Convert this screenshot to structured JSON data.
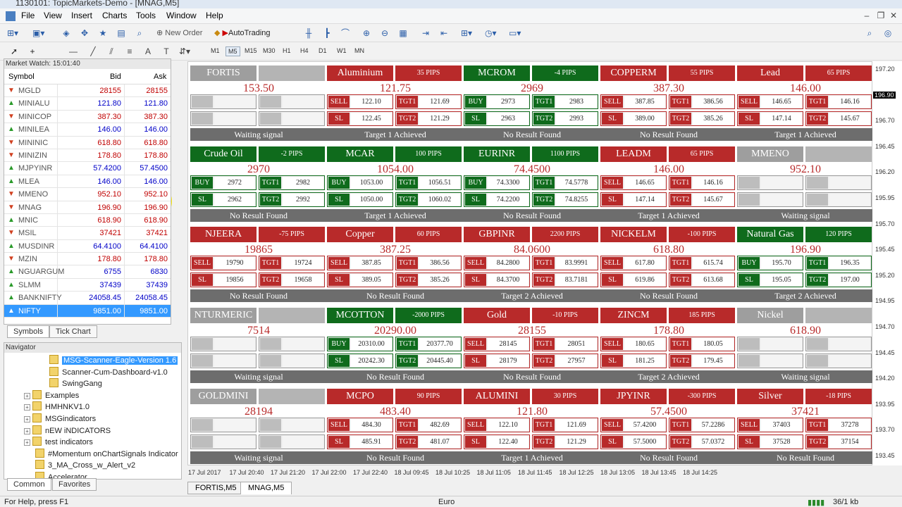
{
  "window": {
    "title": "1130101: TopicMarkets-Demo - [MNAG,M5]"
  },
  "menu": [
    "File",
    "View",
    "Insert",
    "Charts",
    "Tools",
    "Window",
    "Help"
  ],
  "toolbar": {
    "new_order": "New Order",
    "autotrading": "AutoTrading",
    "timeframes": [
      "M1",
      "M5",
      "M15",
      "M30",
      "H1",
      "H4",
      "D1",
      "W1",
      "MN"
    ],
    "active_timeframe": "M5"
  },
  "market_watch": {
    "title": "Market Watch: 15:01:40",
    "headers": {
      "symbol": "Symbol",
      "bid": "Bid",
      "ask": "Ask"
    },
    "rows": [
      {
        "symbol": "MGLD",
        "bid": "28155",
        "ask": "28155",
        "dir": "down",
        "color": "#c00000"
      },
      {
        "symbol": "MINIALU",
        "bid": "121.80",
        "ask": "121.80",
        "dir": "up",
        "color": "#0000c8"
      },
      {
        "symbol": "MINICOP",
        "bid": "387.30",
        "ask": "387.30",
        "dir": "down",
        "color": "#c00000"
      },
      {
        "symbol": "MINILEA",
        "bid": "146.00",
        "ask": "146.00",
        "dir": "up",
        "color": "#0000c8"
      },
      {
        "symbol": "MININIC",
        "bid": "618.80",
        "ask": "618.80",
        "dir": "down",
        "color": "#c00000"
      },
      {
        "symbol": "MINIZIN",
        "bid": "178.80",
        "ask": "178.80",
        "dir": "down",
        "color": "#c00000"
      },
      {
        "symbol": "MJPYINR",
        "bid": "57.4200",
        "ask": "57.4500",
        "dir": "up",
        "color": "#0000c8"
      },
      {
        "symbol": "MLEA",
        "bid": "146.00",
        "ask": "146.00",
        "dir": "up",
        "color": "#0000c8"
      },
      {
        "symbol": "MMENO",
        "bid": "952.10",
        "ask": "952.10",
        "dir": "down",
        "color": "#c00000"
      },
      {
        "symbol": "MNAG",
        "bid": "196.90",
        "ask": "196.90",
        "dir": "down",
        "color": "#c00000"
      },
      {
        "symbol": "MNIC",
        "bid": "618.90",
        "ask": "618.90",
        "dir": "up",
        "color": "#c00000"
      },
      {
        "symbol": "MSIL",
        "bid": "37421",
        "ask": "37421",
        "dir": "down",
        "color": "#c00000"
      },
      {
        "symbol": "MUSDINR",
        "bid": "64.4100",
        "ask": "64.4100",
        "dir": "up",
        "color": "#0000c8"
      },
      {
        "symbol": "MZIN",
        "bid": "178.80",
        "ask": "178.80",
        "dir": "down",
        "color": "#c00000"
      },
      {
        "symbol": "NGUARGUM",
        "bid": "6755",
        "ask": "6830",
        "dir": "up",
        "color": "#0000c8"
      },
      {
        "symbol": "SLMM",
        "bid": "37439",
        "ask": "37439",
        "dir": "up",
        "color": "#0000c8"
      },
      {
        "symbol": "BANKNIFTY",
        "bid": "24058.45",
        "ask": "24058.45",
        "dir": "up",
        "color": "#0000c8"
      },
      {
        "symbol": "NIFTY",
        "bid": "9851.00",
        "ask": "9851.00",
        "dir": "up",
        "color": "#0000c8",
        "selected": true
      }
    ],
    "tabs": [
      "Symbols",
      "Tick Chart"
    ]
  },
  "navigator": {
    "title": "Navigator",
    "items": [
      {
        "label": "MSG-Scanner-Eagle-Version 1.6",
        "highlight": true
      },
      {
        "label": "Scanner-Cum-Dashboard-v1.0"
      },
      {
        "label": "SwingGang"
      },
      {
        "label": "Examples",
        "folder": true
      },
      {
        "label": "HMHNKV1.0",
        "folder": true
      },
      {
        "label": "MSGindicators",
        "folder": true
      },
      {
        "label": "nEW iNDICATORS",
        "folder": true
      },
      {
        "label": "test indicators",
        "folder": true
      },
      {
        "label": "#Momentum onChartSignals Indicator"
      },
      {
        "label": "3_MA_Cross_w_Alert_v2"
      },
      {
        "label": "Accelerator"
      }
    ],
    "tabs": [
      "Common",
      "Favorites"
    ]
  },
  "dashboard": [
    [
      {
        "name": "FORTIS",
        "pips": "",
        "price": "153.50",
        "color": "#9e9e9e",
        "pcolor": "#b4b4b4",
        "empty": true,
        "status": "Waiting signal"
      },
      {
        "name": "Aluminium",
        "pips": "35 PIPS",
        "price": "121.75",
        "color": "#b82a2a",
        "pcolor": "#b82a2a",
        "dir": "SELL",
        "entry": "122.10",
        "sl": "122.45",
        "tgt1": "121.69",
        "tgt2": "121.29",
        "status": "Target 1 Achieved"
      },
      {
        "name": "MCROM",
        "pips": "-4 PIPS",
        "price": "2969",
        "color": "#0f6b1c",
        "pcolor": "#0f6b1c",
        "dir": "BUY",
        "entry": "2973",
        "sl": "2963",
        "tgt1": "2983",
        "tgt2": "2993",
        "status": "No Result Found"
      },
      {
        "name": "COPPERM",
        "pips": "55 PIPS",
        "price": "387.30",
        "color": "#b82a2a",
        "pcolor": "#b82a2a",
        "dir": "SELL",
        "entry": "387.85",
        "sl": "389.00",
        "tgt1": "386.56",
        "tgt2": "385.26",
        "status": "No Result Found"
      },
      {
        "name": "Lead",
        "pips": "65 PIPS",
        "price": "146.00",
        "color": "#b82a2a",
        "pcolor": "#b82a2a",
        "dir": "SELL",
        "entry": "146.65",
        "sl": "147.14",
        "tgt1": "146.16",
        "tgt2": "145.67",
        "status": "Target 1 Achieved"
      }
    ],
    [
      {
        "name": "Crude Oil",
        "pips": "-2 PIPS",
        "price": "2970",
        "color": "#0f6b1c",
        "pcolor": "#0f6b1c",
        "dir": "BUY",
        "entry": "2972",
        "sl": "2962",
        "tgt1": "2982",
        "tgt2": "2992",
        "status": "No Result Found"
      },
      {
        "name": "MCAR",
        "pips": "100 PIPS",
        "price": "1054.00",
        "color": "#0f6b1c",
        "pcolor": "#0f6b1c",
        "dir": "BUY",
        "entry": "1053.00",
        "sl": "1050.00",
        "tgt1": "1056.51",
        "tgt2": "1060.02",
        "status": "Target 1 Achieved"
      },
      {
        "name": "EURINR",
        "pips": "1100 PIPS",
        "price": "74.4500",
        "color": "#0f6b1c",
        "pcolor": "#0f6b1c",
        "dir": "BUY",
        "entry": "74.3300",
        "sl": "74.2200",
        "tgt1": "74.5778",
        "tgt2": "74.8255",
        "status": "No Result Found"
      },
      {
        "name": "LEADM",
        "pips": "65 PIPS",
        "price": "146.00",
        "color": "#b82a2a",
        "pcolor": "#b82a2a",
        "dir": "SELL",
        "entry": "146.65",
        "sl": "147.14",
        "tgt1": "146.16",
        "tgt2": "145.67",
        "status": "Target 1 Achieved"
      },
      {
        "name": "MMENO",
        "pips": "",
        "price": "952.10",
        "color": "#9e9e9e",
        "pcolor": "#b4b4b4",
        "empty": true,
        "status": "Waiting signal"
      }
    ],
    [
      {
        "name": "NJEERA",
        "pips": "-75 PIPS",
        "price": "19865",
        "color": "#b82a2a",
        "pcolor": "#b82a2a",
        "dir": "SELL",
        "entry": "19790",
        "sl": "19856",
        "tgt1": "19724",
        "tgt2": "19658",
        "status": "No Result Found"
      },
      {
        "name": "Copper",
        "pips": "60 PIPS",
        "price": "387.25",
        "color": "#b82a2a",
        "pcolor": "#b82a2a",
        "dir": "SELL",
        "entry": "387.85",
        "sl": "389.05",
        "tgt1": "386.56",
        "tgt2": "385.26",
        "status": "No Result Found"
      },
      {
        "name": "GBPINR",
        "pips": "2200 PIPS",
        "price": "84.0600",
        "color": "#b82a2a",
        "pcolor": "#b82a2a",
        "dir": "SELL",
        "entry": "84.2800",
        "sl": "84.3700",
        "tgt1": "83.9991",
        "tgt2": "83.7181",
        "status": "Target 2 Achieved"
      },
      {
        "name": "NICKELM",
        "pips": "-100 PIPS",
        "price": "618.80",
        "color": "#b82a2a",
        "pcolor": "#b82a2a",
        "dir": "SELL",
        "entry": "617.80",
        "sl": "619.86",
        "tgt1": "615.74",
        "tgt2": "613.68",
        "status": "No Result Found"
      },
      {
        "name": "Natural Gas",
        "pips": "120 PIPS",
        "price": "196.90",
        "color": "#0f6b1c",
        "pcolor": "#0f6b1c",
        "dir": "BUY",
        "entry": "195.70",
        "sl": "195.05",
        "tgt1": "196.35",
        "tgt2": "197.00",
        "status": "Target 2 Achieved"
      }
    ],
    [
      {
        "name": "NTURMERIC",
        "pips": "",
        "price": "7514",
        "color": "#9e9e9e",
        "pcolor": "#b4b4b4",
        "empty": true,
        "status": "Waiting signal"
      },
      {
        "name": "MCOTTON",
        "pips": "-2000 PIPS",
        "price": "20290.00",
        "color": "#0f6b1c",
        "pcolor": "#0f6b1c",
        "dir": "BUY",
        "entry": "20310.00",
        "sl": "20242.30",
        "tgt1": "20377.70",
        "tgt2": "20445.40",
        "status": "No Result Found"
      },
      {
        "name": "Gold",
        "pips": "-10 PIPS",
        "price": "28155",
        "color": "#b82a2a",
        "pcolor": "#b82a2a",
        "dir": "SELL",
        "entry": "28145",
        "sl": "28179",
        "tgt1": "28051",
        "tgt2": "27957",
        "status": "No Result Found"
      },
      {
        "name": "ZINCM",
        "pips": "185 PIPS",
        "price": "178.80",
        "color": "#b82a2a",
        "pcolor": "#b82a2a",
        "dir": "SELL",
        "entry": "180.65",
        "sl": "181.25",
        "tgt1": "180.05",
        "tgt2": "179.45",
        "status": "Target 2 Achieved"
      },
      {
        "name": "Nickel",
        "pips": "",
        "price": "618.90",
        "color": "#9e9e9e",
        "pcolor": "#b4b4b4",
        "empty": true,
        "status": "Waiting signal"
      }
    ],
    [
      {
        "name": "GOLDMINI",
        "pips": "",
        "price": "28194",
        "color": "#9e9e9e",
        "pcolor": "#b4b4b4",
        "empty": true,
        "status": "Waiting signal"
      },
      {
        "name": "MCPO",
        "pips": "90 PIPS",
        "price": "483.40",
        "color": "#b82a2a",
        "pcolor": "#b82a2a",
        "dir": "SELL",
        "entry": "484.30",
        "sl": "485.91",
        "tgt1": "482.69",
        "tgt2": "481.07",
        "status": "No Result Found"
      },
      {
        "name": "ALUMINI",
        "pips": "30 PIPS",
        "price": "121.80",
        "color": "#b82a2a",
        "pcolor": "#b82a2a",
        "dir": "SELL",
        "entry": "122.10",
        "sl": "122.40",
        "tgt1": "121.69",
        "tgt2": "121.29",
        "status": "Target 1 Achieved"
      },
      {
        "name": "JPYINR",
        "pips": "-300 PIPS",
        "price": "57.4500",
        "color": "#b82a2a",
        "pcolor": "#b82a2a",
        "dir": "SELL",
        "entry": "57.4200",
        "sl": "57.5000",
        "tgt1": "57.2286",
        "tgt2": "57.0372",
        "status": "No Result Found"
      },
      {
        "name": "Silver",
        "pips": "-18 PIPS",
        "price": "37421",
        "color": "#b82a2a",
        "pcolor": "#b82a2a",
        "dir": "SELL",
        "entry": "37403",
        "sl": "37528",
        "tgt1": "37278",
        "tgt2": "37154",
        "status": "No Result Found"
      }
    ]
  ],
  "labels": {
    "sl": "SL",
    "tgt1": "TGT1",
    "tgt2": "TGT2"
  },
  "price_axis": [
    "197.20",
    "196.90",
    "196.70",
    "196.45",
    "196.20",
    "195.95",
    "195.70",
    "195.45",
    "195.20",
    "194.95",
    "194.70",
    "194.45",
    "194.20",
    "193.95",
    "193.70",
    "193.45"
  ],
  "current_price_tag": "196.90",
  "time_axis": [
    "17 Jul 2017",
    "17 Jul 20:40",
    "17 Jul 21:20",
    "17 Jul 22:00",
    "17 Jul 22:40",
    "18 Jul 09:45",
    "18 Jul 10:25",
    "18 Jul 11:05",
    "18 Jul 11:45",
    "18 Jul 12:25",
    "18 Jul 13:05",
    "18 Jul 13:45",
    "18 Jul 14:25"
  ],
  "chart_tabs": [
    "FORTIS,M5",
    "MNAG,M5"
  ],
  "statusbar": {
    "help": "For Help, press F1",
    "profile": "Euro",
    "traffic": "36/1 kb"
  }
}
